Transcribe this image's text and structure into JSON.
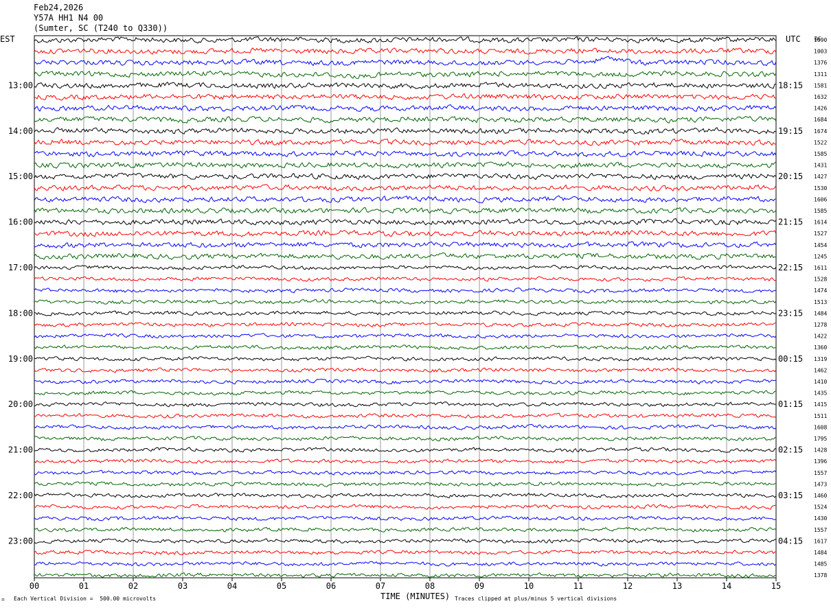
{
  "header": {
    "date": "Feb24,2026",
    "station": "Y57A HH1 N4 00",
    "location": "(Sumter, SC (T240 to Q330))"
  },
  "left_axis_title": "EST",
  "right_axis_title": "UTC",
  "dc_title": "DC",
  "footer": {
    "scale_note": "Each Vertical Division =  500.00 microvolts",
    "clip_note": "Traces clipped at plus/minus 5 vertical divisions",
    "marker": "="
  },
  "colors": [
    "#000000",
    "#ff0000",
    "#0000ff",
    "#006400"
  ],
  "chart_data": {
    "type": "line",
    "xlabel": "TIME (MINUTES)",
    "x_ticks": [
      "00",
      "01",
      "02",
      "03",
      "04",
      "05",
      "06",
      "07",
      "08",
      "09",
      "10",
      "11",
      "12",
      "13",
      "14",
      "15"
    ],
    "xlim": [
      0,
      15
    ],
    "trace_count": 48,
    "traces_per_hour": 4,
    "left_hour_labels": [
      "13:00",
      "14:00",
      "15:00",
      "16:00",
      "17:00",
      "18:00",
      "19:00",
      "20:00",
      "21:00",
      "22:00",
      "23:00"
    ],
    "right_hour_labels": [
      "18:15",
      "19:15",
      "20:15",
      "21:15",
      "22:15",
      "23:15",
      "00:15",
      "01:15",
      "02:15",
      "03:15",
      "04:15"
    ],
    "dc_values": [
      "1090",
      "1003",
      "1376",
      "1311",
      "1581",
      "1632",
      "1426",
      "1684",
      "1674",
      "1522",
      "1585",
      "1431",
      "1427",
      "1530",
      "1606",
      "1585",
      "1614",
      "1527",
      "1454",
      "1245",
      "1611",
      "1528",
      "1474",
      "1513",
      "1484",
      "1278",
      "1422",
      "1360",
      "1319",
      "1462",
      "1410",
      "1435",
      "1415",
      "1511",
      "1608",
      "1795",
      "1428",
      "1396",
      "1557",
      "1473",
      "1460",
      "1524",
      "1430",
      "1557",
      "1617",
      "1484",
      "1485",
      "1378"
    ],
    "grid": true
  }
}
